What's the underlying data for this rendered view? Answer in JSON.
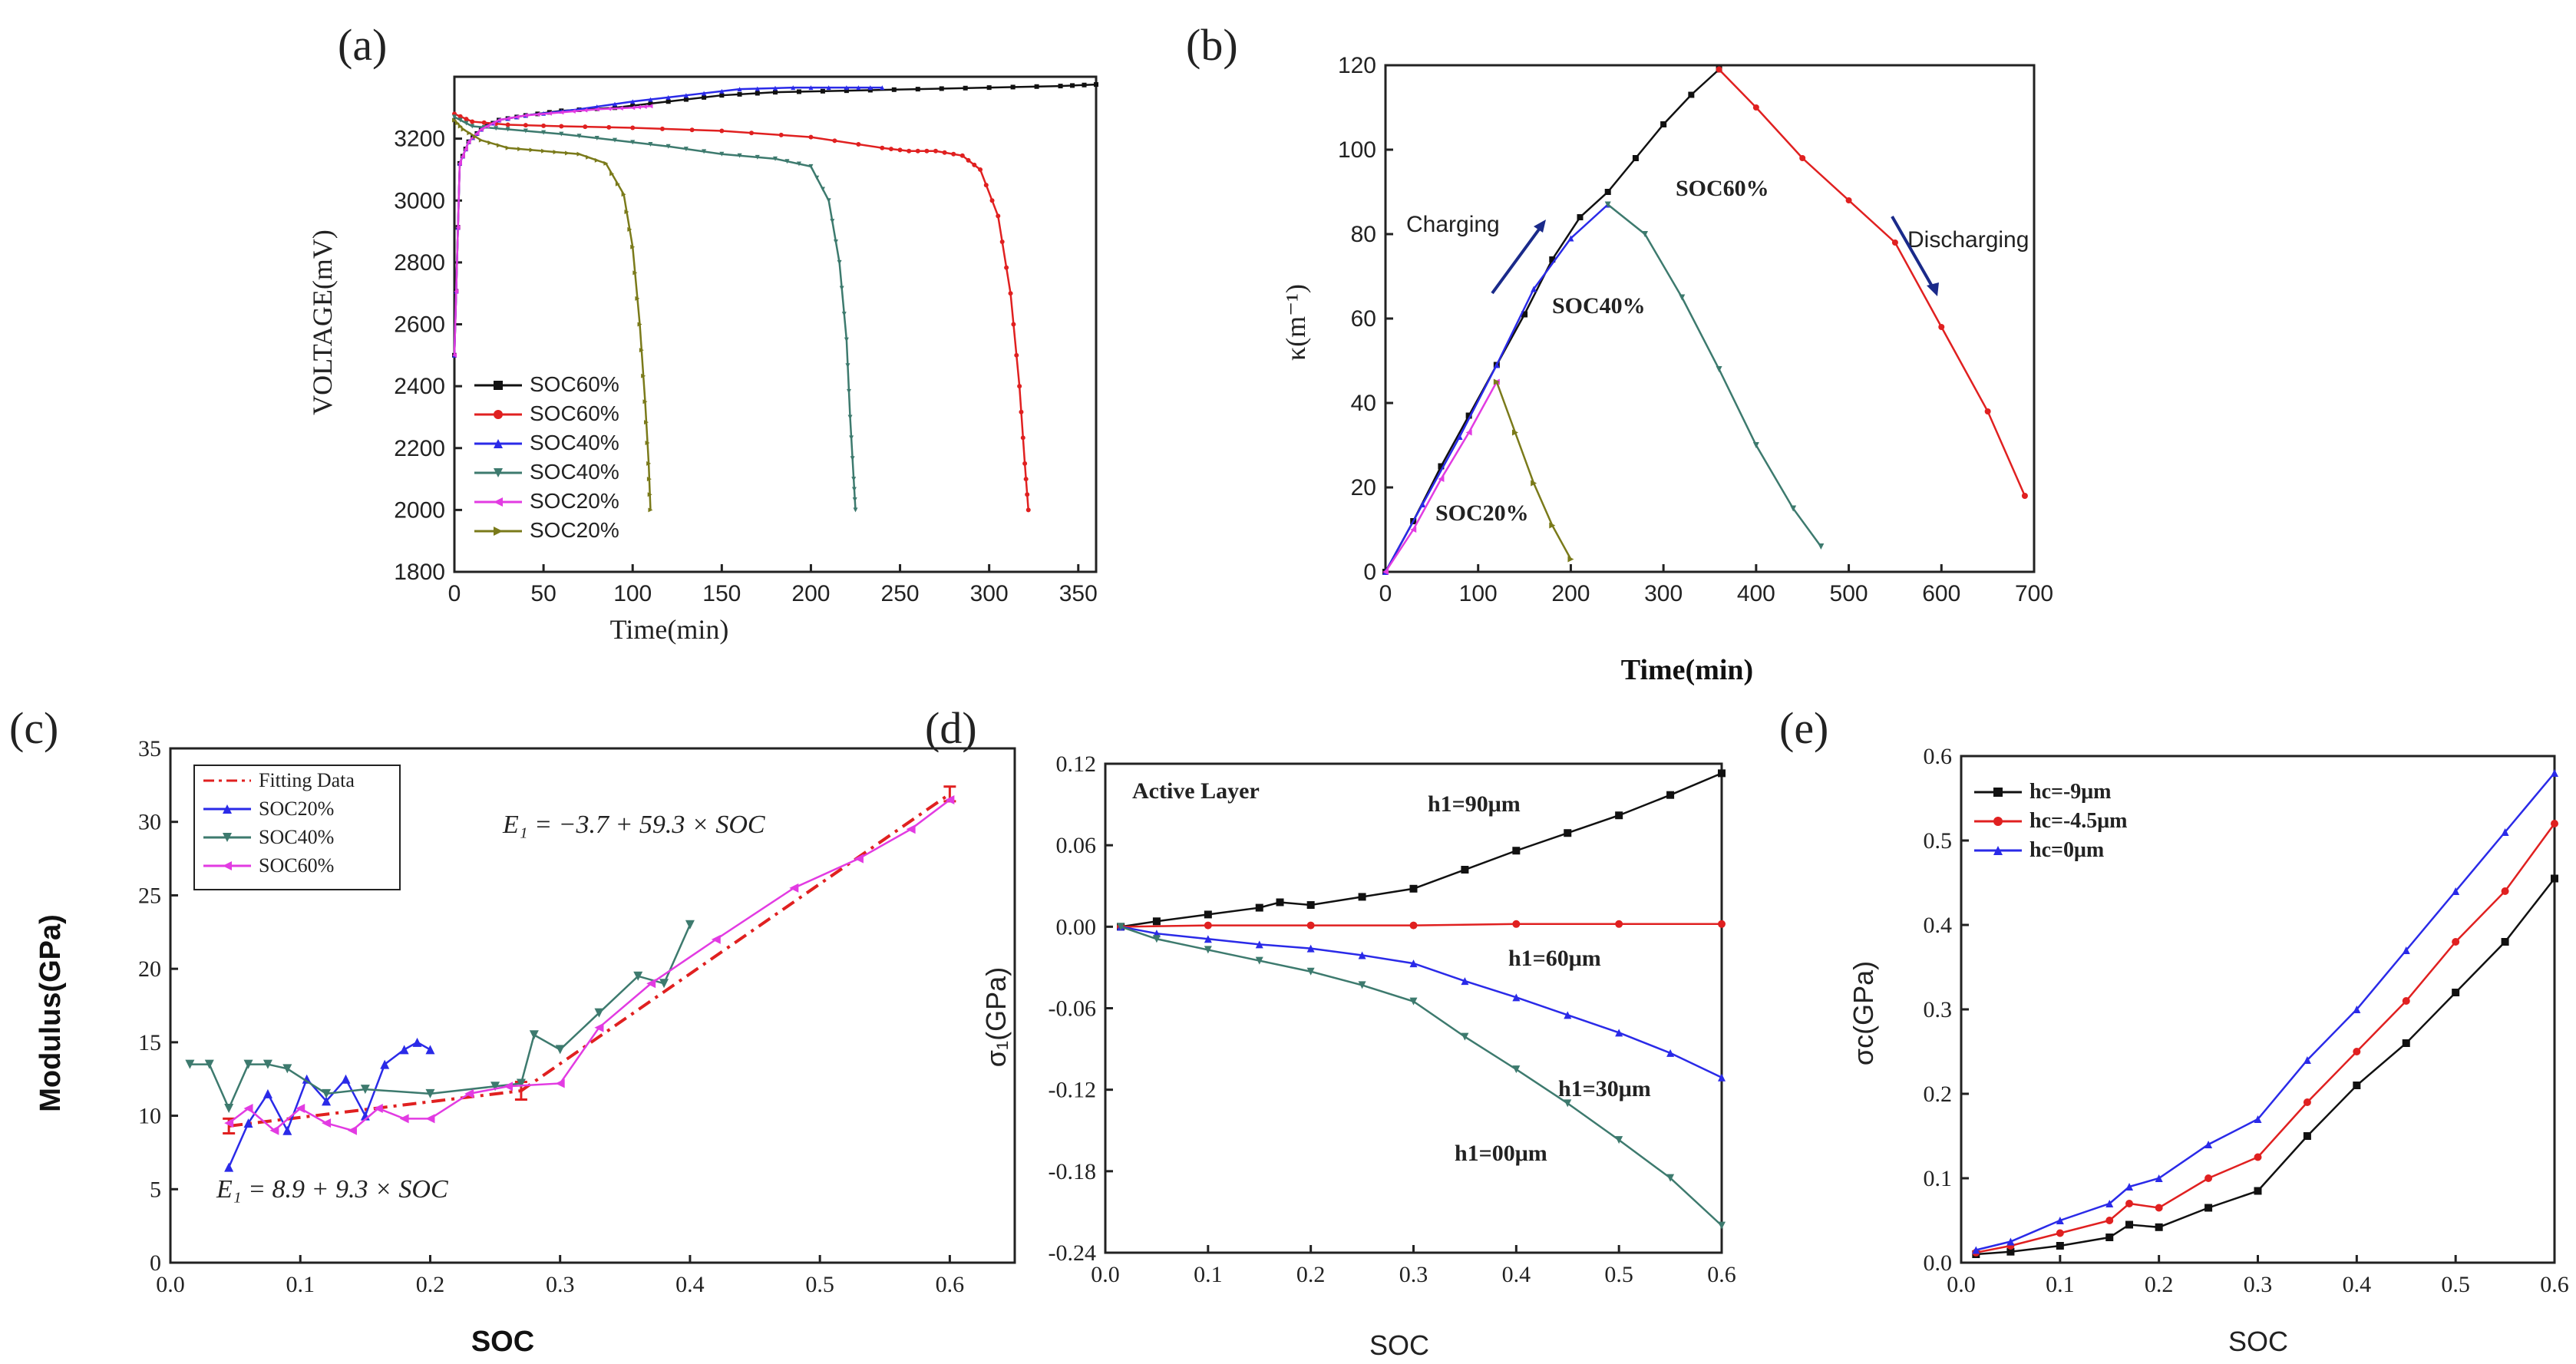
{
  "figure_labels": [
    "(a)",
    "(b)",
    "(c)",
    "(d)",
    "(e)"
  ],
  "colors": {
    "black": "#111111",
    "red": "#e02020",
    "blue": "#2a2ae8",
    "teal": "#3d7a6e",
    "magenta": "#e23be2",
    "olive": "#7a7a1a",
    "axis": "#222222"
  },
  "chart_data": [
    {
      "id": "a",
      "type": "line",
      "xlabel": "Time(min)",
      "ylabel": "VOLTAGE(mV)",
      "xlim": [
        0,
        360
      ],
      "ylim": [
        1800,
        3400
      ],
      "xticks": [
        0,
        50,
        100,
        150,
        200,
        250,
        300,
        350
      ],
      "yticks": [
        1800,
        2000,
        2200,
        2400,
        2600,
        2800,
        3000,
        3200
      ],
      "series": [
        {
          "name": "SOC60%",
          "color": "black",
          "marker": "square",
          "x": [
            0,
            3,
            8,
            15,
            25,
            40,
            60,
            90,
            120,
            150,
            180,
            220,
            260,
            300,
            340,
            360
          ],
          "y": [
            2500,
            3120,
            3190,
            3230,
            3260,
            3275,
            3290,
            3300,
            3320,
            3340,
            3350,
            3355,
            3360,
            3365,
            3370,
            3375
          ]
        },
        {
          "name": "SOC60%",
          "color": "red",
          "marker": "circle",
          "x": [
            0,
            10,
            30,
            60,
            100,
            150,
            200,
            240,
            255,
            270,
            285,
            295,
            305,
            312,
            317,
            320,
            322
          ],
          "y": [
            3280,
            3255,
            3245,
            3240,
            3235,
            3225,
            3205,
            3170,
            3160,
            3160,
            3145,
            3100,
            2950,
            2700,
            2400,
            2150,
            2000
          ]
        },
        {
          "name": "SOC40%",
          "color": "blue",
          "marker": "triangle-up",
          "x": [
            0,
            3,
            8,
            15,
            25,
            40,
            70,
            100,
            130,
            160,
            190,
            220,
            240
          ],
          "y": [
            2500,
            3120,
            3190,
            3230,
            3260,
            3275,
            3295,
            3320,
            3340,
            3360,
            3365,
            3365,
            3365
          ]
        },
        {
          "name": "SOC40%",
          "color": "teal",
          "marker": "triangle-down",
          "x": [
            0,
            10,
            30,
            60,
            90,
            120,
            150,
            180,
            200,
            210,
            216,
            220,
            222,
            224,
            225
          ],
          "y": [
            3270,
            3240,
            3230,
            3215,
            3195,
            3175,
            3150,
            3135,
            3110,
            3000,
            2800,
            2550,
            2300,
            2100,
            2000
          ]
        },
        {
          "name": "SOC20%",
          "color": "magenta",
          "marker": "triangle-left",
          "x": [
            0,
            3,
            8,
            15,
            25,
            40,
            60,
            80,
            100,
            110
          ],
          "y": [
            2500,
            3120,
            3190,
            3230,
            3260,
            3275,
            3285,
            3295,
            3300,
            3305
          ]
        },
        {
          "name": "SOC20%",
          "color": "olive",
          "marker": "triangle-right",
          "x": [
            0,
            5,
            15,
            30,
            50,
            70,
            85,
            95,
            100,
            104,
            107,
            109,
            110
          ],
          "y": [
            3260,
            3230,
            3195,
            3170,
            3160,
            3150,
            3120,
            3020,
            2850,
            2600,
            2350,
            2150,
            2000
          ]
        }
      ]
    },
    {
      "id": "b",
      "type": "line",
      "xlabel": "Time(min)",
      "ylabel": "κ(m⁻¹)",
      "xlim": [
        0,
        700
      ],
      "ylim": [
        0,
        120
      ],
      "xticks": [
        0,
        100,
        200,
        300,
        400,
        500,
        600,
        700
      ],
      "yticks": [
        0,
        20,
        40,
        60,
        80,
        100,
        120
      ],
      "annotations": [
        "Charging",
        "Discharging",
        "SOC60%",
        "SOC40%",
        "SOC20%"
      ],
      "series": [
        {
          "name": "SOC60% charging",
          "color": "black",
          "marker": "square",
          "x": [
            0,
            30,
            60,
            90,
            120,
            150,
            180,
            210,
            240,
            270,
            300,
            330,
            360
          ],
          "y": [
            0,
            12,
            25,
            37,
            49,
            61,
            74,
            84,
            90,
            98,
            106,
            113,
            119
          ]
        },
        {
          "name": "SOC60% discharging",
          "color": "red",
          "marker": "circle",
          "x": [
            360,
            400,
            450,
            500,
            550,
            600,
            650,
            690
          ],
          "y": [
            119,
            110,
            98,
            88,
            78,
            58,
            38,
            18
          ]
        },
        {
          "name": "SOC40% charging",
          "color": "blue",
          "marker": "triangle-up",
          "x": [
            0,
            40,
            80,
            120,
            160,
            200,
            240
          ],
          "y": [
            0,
            16,
            32,
            49,
            67,
            79,
            87
          ]
        },
        {
          "name": "SOC40% discharging",
          "color": "teal",
          "marker": "triangle-down",
          "x": [
            240,
            280,
            320,
            360,
            400,
            440,
            470
          ],
          "y": [
            87,
            80,
            65,
            48,
            30,
            15,
            6
          ]
        },
        {
          "name": "SOC20% charging",
          "color": "magenta",
          "marker": "triangle-left",
          "x": [
            0,
            30,
            60,
            90,
            120
          ],
          "y": [
            0,
            10,
            22,
            33,
            45
          ]
        },
        {
          "name": "SOC20% discharging",
          "color": "olive",
          "marker": "triangle-right",
          "x": [
            120,
            140,
            160,
            180,
            200
          ],
          "y": [
            45,
            33,
            21,
            11,
            3
          ]
        }
      ]
    },
    {
      "id": "c",
      "type": "line",
      "xlabel": "SOC",
      "ylabel": "Modulus(GPa)",
      "xlim": [
        0,
        0.65
      ],
      "ylim": [
        0,
        35
      ],
      "xticks": [
        0.0,
        0.1,
        0.2,
        0.3,
        0.4,
        0.5,
        0.6
      ],
      "yticks": [
        0,
        5,
        10,
        15,
        20,
        25,
        30,
        35
      ],
      "equations": [
        "E₁ = −3.7 + 59.3 × SOC",
        "E₁ = 8.9 + 9.3 × SOC"
      ],
      "series": [
        {
          "name": "Fitting Data",
          "color": "red",
          "marker": "errorbar",
          "x": [
            0.045,
            0.27,
            0.6
          ],
          "y": [
            9.3,
            11.7,
            31.9
          ],
          "err": [
            0.5,
            0.6,
            0.5
          ]
        },
        {
          "name": "SOC20%",
          "color": "blue",
          "marker": "triangle-up",
          "x": [
            0.045,
            0.06,
            0.075,
            0.09,
            0.105,
            0.12,
            0.135,
            0.15,
            0.165,
            0.18,
            0.19,
            0.2
          ],
          "y": [
            6.5,
            9.5,
            11.5,
            9.0,
            12.5,
            11.0,
            12.5,
            10.0,
            13.5,
            14.5,
            15.0,
            14.5
          ]
        },
        {
          "name": "SOC40%",
          "color": "teal",
          "marker": "triangle-down",
          "x": [
            0.015,
            0.03,
            0.045,
            0.06,
            0.075,
            0.09,
            0.12,
            0.15,
            0.2,
            0.25,
            0.27,
            0.28,
            0.3,
            0.33,
            0.36,
            0.38,
            0.4
          ],
          "y": [
            13.5,
            13.5,
            10.5,
            13.5,
            13.5,
            13.2,
            11.5,
            11.8,
            11.5,
            12.0,
            12.2,
            15.5,
            14.5,
            17.0,
            19.5,
            19.0,
            23.0
          ]
        },
        {
          "name": "SOC60%",
          "color": "magenta",
          "marker": "triangle-left",
          "x": [
            0.045,
            0.06,
            0.08,
            0.1,
            0.12,
            0.14,
            0.16,
            0.18,
            0.2,
            0.23,
            0.26,
            0.3,
            0.33,
            0.37,
            0.42,
            0.48,
            0.53,
            0.57,
            0.6
          ],
          "y": [
            9.5,
            10.5,
            9.0,
            10.5,
            9.5,
            9.0,
            10.5,
            9.8,
            9.8,
            11.5,
            12.0,
            12.2,
            16.0,
            19.0,
            22.0,
            25.5,
            27.5,
            29.5,
            31.5
          ]
        }
      ]
    },
    {
      "id": "d",
      "type": "line",
      "title": "Active Layer",
      "xlabel": "SOC",
      "ylabel": "σ₁(GPa)",
      "xlim": [
        0,
        0.6
      ],
      "ylim": [
        -0.24,
        0.12
      ],
      "xticks": [
        0.0,
        0.1,
        0.2,
        0.3,
        0.4,
        0.5,
        0.6
      ],
      "yticks": [
        -0.24,
        -0.18,
        -0.12,
        -0.06,
        0.0,
        0.06,
        0.12
      ],
      "series": [
        {
          "name": "h1=90μm",
          "color": "black",
          "marker": "square",
          "x": [
            0.015,
            0.05,
            0.1,
            0.15,
            0.17,
            0.2,
            0.25,
            0.3,
            0.35,
            0.4,
            0.45,
            0.5,
            0.55,
            0.6
          ],
          "y": [
            0,
            0.004,
            0.009,
            0.014,
            0.018,
            0.016,
            0.022,
            0.028,
            0.042,
            0.056,
            0.069,
            0.082,
            0.097,
            0.113
          ]
        },
        {
          "name": "h1=60μm",
          "color": "red",
          "marker": "circle",
          "x": [
            0.015,
            0.1,
            0.2,
            0.3,
            0.4,
            0.5,
            0.6
          ],
          "y": [
            0,
            0.001,
            0.001,
            0.001,
            0.002,
            0.002,
            0.002
          ]
        },
        {
          "name": "h1=30μm",
          "color": "blue",
          "marker": "triangle-up",
          "x": [
            0.015,
            0.05,
            0.1,
            0.15,
            0.2,
            0.25,
            0.3,
            0.35,
            0.4,
            0.45,
            0.5,
            0.55,
            0.6
          ],
          "y": [
            0,
            -0.005,
            -0.009,
            -0.013,
            -0.016,
            -0.021,
            -0.027,
            -0.04,
            -0.052,
            -0.065,
            -0.078,
            -0.093,
            -0.111
          ]
        },
        {
          "name": "h1=00μm",
          "color": "teal",
          "marker": "triangle-down",
          "x": [
            0.015,
            0.05,
            0.1,
            0.15,
            0.2,
            0.25,
            0.3,
            0.35,
            0.4,
            0.45,
            0.5,
            0.55,
            0.6
          ],
          "y": [
            0,
            -0.009,
            -0.017,
            -0.025,
            -0.033,
            -0.043,
            -0.055,
            -0.081,
            -0.105,
            -0.13,
            -0.157,
            -0.185,
            -0.22
          ]
        }
      ]
    },
    {
      "id": "e",
      "type": "line",
      "xlabel": "SOC",
      "ylabel": "σc(GPa)",
      "xlim": [
        0,
        0.6
      ],
      "ylim": [
        0,
        0.6
      ],
      "xticks": [
        0.0,
        0.1,
        0.2,
        0.3,
        0.4,
        0.5,
        0.6
      ],
      "yticks": [
        0.0,
        0.1,
        0.2,
        0.3,
        0.4,
        0.5,
        0.6
      ],
      "series": [
        {
          "name": "hc=-9μm",
          "color": "black",
          "marker": "square",
          "x": [
            0.015,
            0.05,
            0.1,
            0.15,
            0.17,
            0.2,
            0.25,
            0.3,
            0.35,
            0.4,
            0.45,
            0.5,
            0.55,
            0.6
          ],
          "y": [
            0.01,
            0.013,
            0.02,
            0.03,
            0.045,
            0.042,
            0.065,
            0.085,
            0.15,
            0.21,
            0.26,
            0.32,
            0.38,
            0.455
          ]
        },
        {
          "name": "hc=-4.5μm",
          "color": "red",
          "marker": "circle",
          "x": [
            0.015,
            0.05,
            0.1,
            0.15,
            0.17,
            0.2,
            0.25,
            0.3,
            0.35,
            0.4,
            0.45,
            0.5,
            0.55,
            0.6
          ],
          "y": [
            0.012,
            0.02,
            0.035,
            0.05,
            0.07,
            0.065,
            0.1,
            0.125,
            0.19,
            0.25,
            0.31,
            0.38,
            0.44,
            0.52
          ]
        },
        {
          "name": "hc=0μm",
          "color": "blue",
          "marker": "triangle-up",
          "x": [
            0.015,
            0.05,
            0.1,
            0.15,
            0.17,
            0.2,
            0.25,
            0.3,
            0.35,
            0.4,
            0.45,
            0.5,
            0.55,
            0.6
          ],
          "y": [
            0.015,
            0.025,
            0.05,
            0.07,
            0.09,
            0.1,
            0.14,
            0.17,
            0.24,
            0.3,
            0.37,
            0.44,
            0.51,
            0.58
          ]
        }
      ]
    }
  ]
}
